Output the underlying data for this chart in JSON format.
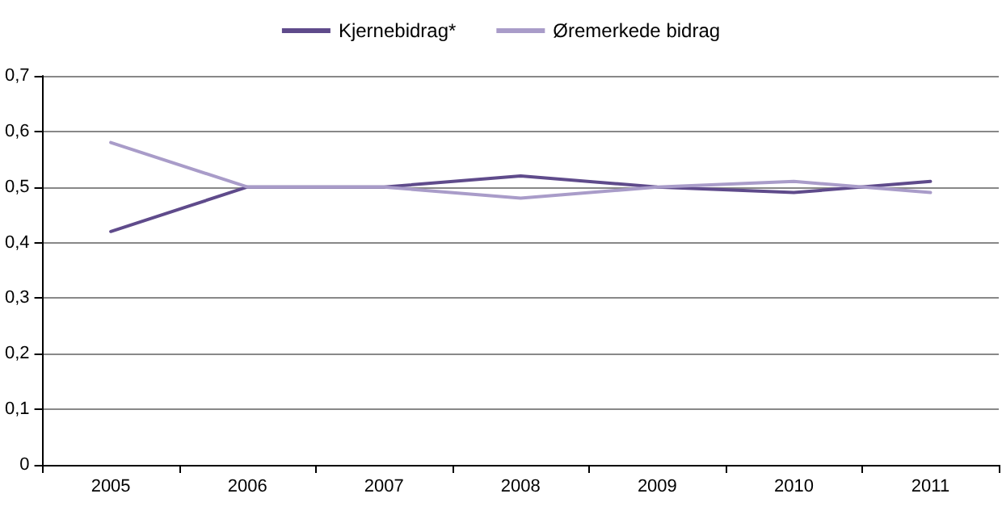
{
  "chart_data": {
    "type": "line",
    "categories": [
      "2005",
      "2006",
      "2007",
      "2008",
      "2009",
      "2010",
      "2011"
    ],
    "series": [
      {
        "name": "Kjernebidrag*",
        "color": "#5f4b8b",
        "values": [
          0.42,
          0.5,
          0.5,
          0.52,
          0.5,
          0.49,
          0.51
        ]
      },
      {
        "name": "Øremerkede bidrag",
        "color": "#a99cc9",
        "values": [
          0.58,
          0.5,
          0.5,
          0.48,
          0.5,
          0.51,
          0.49
        ]
      }
    ],
    "ylim": [
      0,
      0.7
    ],
    "yticks": [
      {
        "value": 0,
        "label": "0"
      },
      {
        "value": 0.1,
        "label": "0,1"
      },
      {
        "value": 0.2,
        "label": "0,2"
      },
      {
        "value": 0.3,
        "label": "0,3"
      },
      {
        "value": 0.4,
        "label": "0,4"
      },
      {
        "value": 0.5,
        "label": "0,5"
      },
      {
        "value": 0.6,
        "label": "0,6"
      },
      {
        "value": 0.7,
        "label": "0,7"
      }
    ],
    "grid": "y",
    "legend": "top",
    "marker": "none",
    "line_style": "solid"
  }
}
